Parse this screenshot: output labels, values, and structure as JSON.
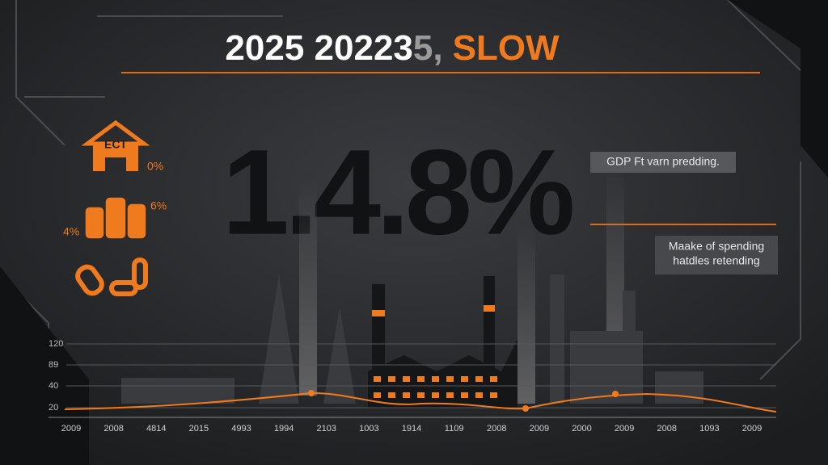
{
  "title": {
    "segments": [
      "2025 20223",
      "5,",
      "SLOW"
    ]
  },
  "icons": {
    "house_label": "ECT",
    "house_value": "0%",
    "coins_right": "6%",
    "coins_left": "4%"
  },
  "headline": "1.4.8%",
  "notes": {
    "first": "GDP Ft varn predding.",
    "second": [
      "Maake of spending",
      "hatdles retending"
    ]
  },
  "timeline": {
    "y_labels": [
      "120",
      "89",
      "40",
      "20"
    ],
    "x_labels": [
      "2009",
      "2008",
      "4814",
      "2015",
      "4993",
      "1994",
      "2103",
      "1003",
      "1914",
      "1109",
      "2008",
      "2009",
      "2000",
      "2009",
      "2008",
      "1093",
      "2009"
    ]
  }
}
